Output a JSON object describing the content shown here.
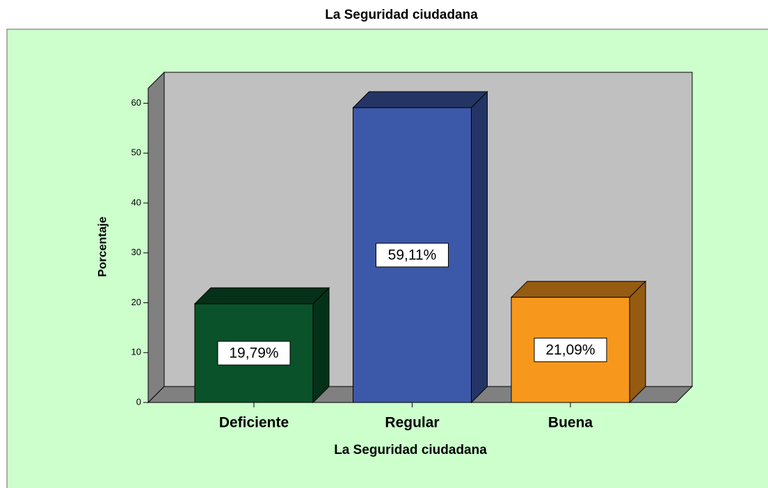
{
  "chart_data": {
    "type": "bar3d",
    "title": "La Seguridad ciudadana",
    "xlabel": "La Seguridad ciudadana",
    "ylabel": "Porcentaje",
    "categories": [
      "Deficiente",
      "Regular",
      "Buena"
    ],
    "values": [
      19.79,
      59.11,
      21.09
    ],
    "value_labels": [
      "19,79%",
      "59,11%",
      "21,09%"
    ],
    "colors": [
      "#0a5229",
      "#3c58a8",
      "#f7981d"
    ],
    "ylim": [
      0,
      63
    ],
    "yticks": [
      0,
      10,
      20,
      30,
      40,
      50,
      60
    ]
  }
}
